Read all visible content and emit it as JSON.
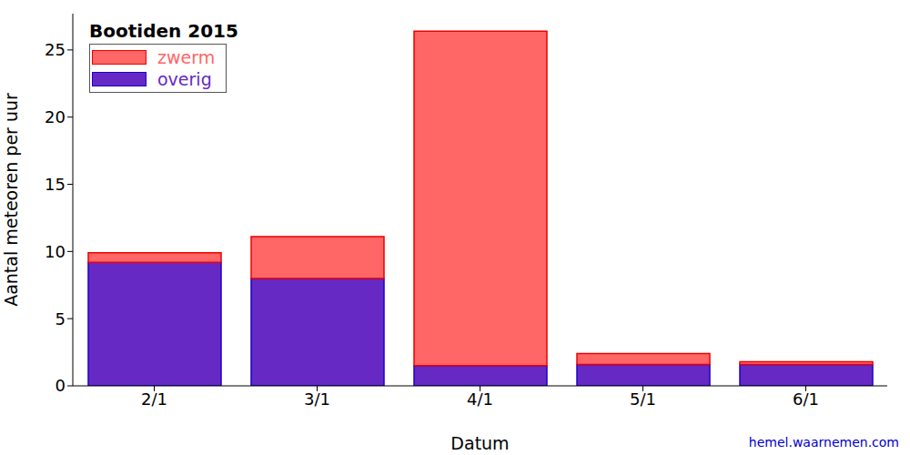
{
  "chart_data": {
    "type": "bar",
    "title": "Bootiden 2015",
    "x_label": "Datum",
    "y_label": "Aantal meteoren per uur",
    "source": "hemel.waarnemen.com",
    "categories": [
      "2/1",
      "3/1",
      "4/1",
      "5/1",
      "6/1"
    ],
    "series": [
      {
        "name": "overig",
        "color": "#6629c4",
        "values": [
          9.2,
          8.0,
          1.5,
          1.6,
          1.6
        ]
      },
      {
        "name": "zwerm",
        "color": "#ff6666",
        "values": [
          0.7,
          3.1,
          24.9,
          0.8,
          0.2
        ]
      }
    ],
    "stacked": true,
    "legend": "upper left",
    "ylim": [
      0,
      27.7
    ],
    "yticks": [
      0,
      5,
      10,
      15,
      20,
      25
    ]
  }
}
